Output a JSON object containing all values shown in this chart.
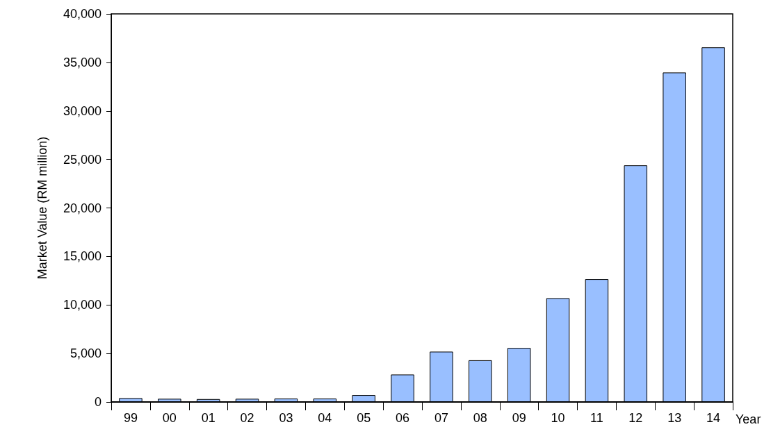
{
  "chart_data": {
    "type": "bar",
    "xlabel": "Year",
    "ylabel": "Market Value (RM million)",
    "categories": [
      "99",
      "00",
      "01",
      "02",
      "03",
      "04",
      "05",
      "06",
      "07",
      "08",
      "09",
      "10",
      "11",
      "12",
      "13",
      "14"
    ],
    "values": [
      400,
      330,
      300,
      330,
      350,
      350,
      710,
      2830,
      5190,
      4300,
      5570,
      10700,
      12660,
      24390,
      33960,
      36550
    ],
    "color": "#99bfff",
    "ylim": [
      0,
      40000
    ],
    "yticks": [
      0,
      {
        "value": 5000,
        "label": "5,000"
      },
      {
        "value": 10000,
        "label": "10,000"
      },
      {
        "value": 15000,
        "label": "15,000"
      },
      {
        "value": 20000,
        "label": "20,000"
      },
      {
        "value": 25000,
        "label": "25,000"
      },
      {
        "value": 30000,
        "label": "30,000"
      },
      {
        "value": 35000,
        "label": "35,000"
      },
      {
        "value": 40000,
        "label": "40,000"
      }
    ],
    "grid": false
  }
}
